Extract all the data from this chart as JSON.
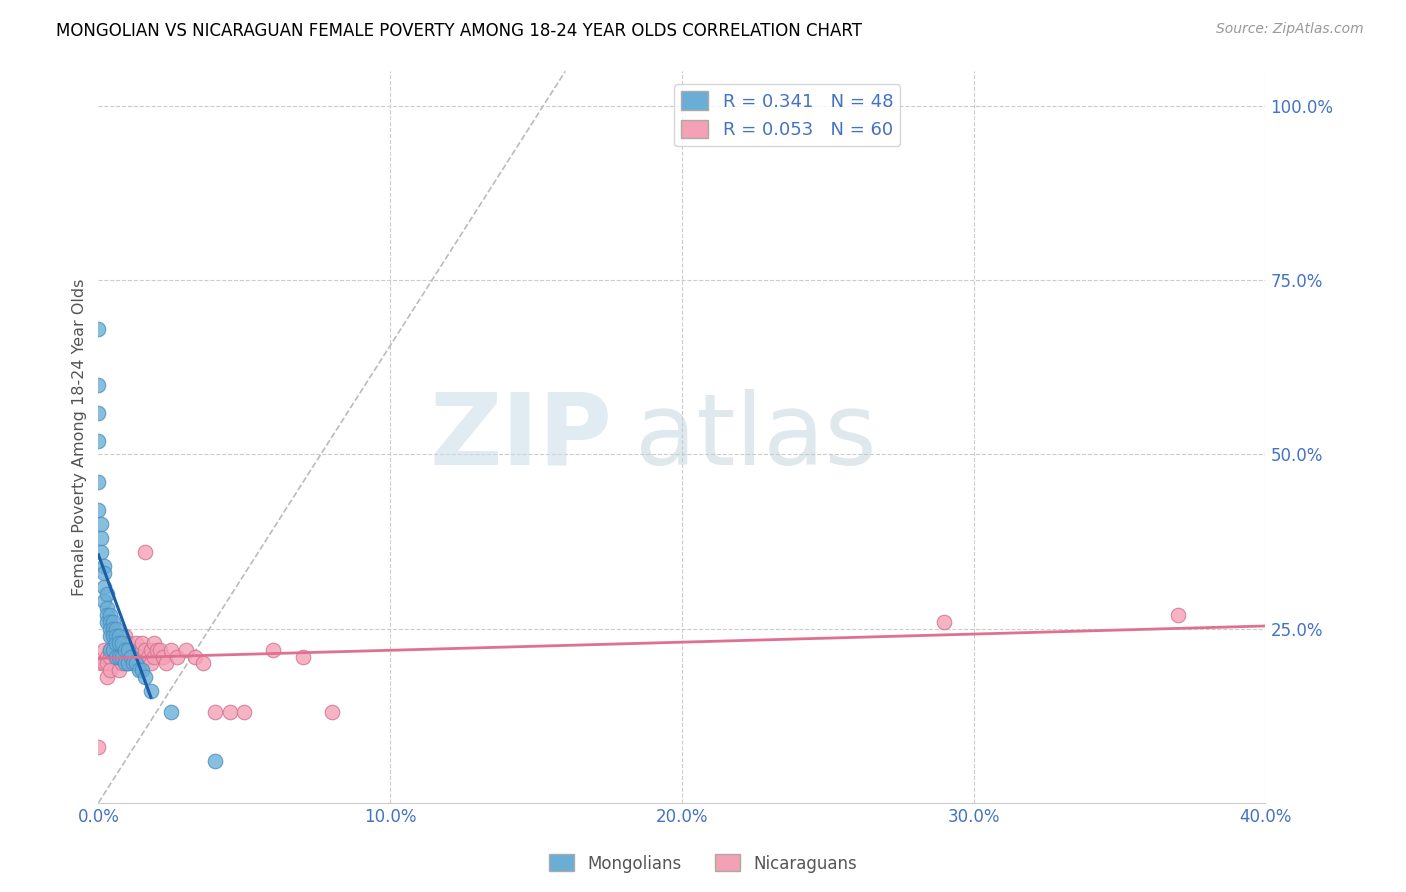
{
  "title": "MONGOLIAN VS NICARAGUAN FEMALE POVERTY AMONG 18-24 YEAR OLDS CORRELATION CHART",
  "source": "Source: ZipAtlas.com",
  "ylabel": "Female Poverty Among 18-24 Year Olds",
  "xlim": [
    0.0,
    0.4
  ],
  "ylim": [
    0.0,
    1.05
  ],
  "x_ticks": [
    0.0,
    0.1,
    0.2,
    0.3,
    0.4
  ],
  "x_tick_labels": [
    "0.0%",
    "10.0%",
    "20.0%",
    "30.0%",
    "40.0%"
  ],
  "y_ticks_right": [
    0.25,
    0.5,
    0.75,
    1.0
  ],
  "y_tick_labels_right": [
    "25.0%",
    "50.0%",
    "75.0%",
    "100.0%"
  ],
  "mongolian_color": "#6aaed6",
  "mongolian_edge_color": "#4a8ec0",
  "nicaraguan_color": "#f4a0b5",
  "nicaraguan_edge_color": "#d07090",
  "mongolian_R": 0.341,
  "mongolian_N": 48,
  "nicaraguan_R": 0.053,
  "nicaraguan_N": 60,
  "mongolian_trend_color": "#1a5fa8",
  "nicaraguan_trend_color": "#e07090",
  "ref_line_color": "#bbbbbb",
  "mongolian_x": [
    0.0,
    0.0,
    0.0,
    0.0,
    0.0,
    0.0,
    0.001,
    0.001,
    0.001,
    0.002,
    0.002,
    0.002,
    0.002,
    0.003,
    0.003,
    0.003,
    0.003,
    0.004,
    0.004,
    0.004,
    0.004,
    0.004,
    0.005,
    0.005,
    0.005,
    0.005,
    0.006,
    0.006,
    0.006,
    0.006,
    0.007,
    0.007,
    0.007,
    0.008,
    0.008,
    0.009,
    0.009,
    0.01,
    0.01,
    0.011,
    0.012,
    0.013,
    0.014,
    0.015,
    0.016,
    0.018,
    0.025,
    0.04
  ],
  "mongolian_y": [
    0.68,
    0.6,
    0.56,
    0.52,
    0.46,
    0.42,
    0.4,
    0.38,
    0.36,
    0.34,
    0.33,
    0.31,
    0.29,
    0.3,
    0.28,
    0.27,
    0.26,
    0.27,
    0.26,
    0.25,
    0.24,
    0.22,
    0.26,
    0.25,
    0.24,
    0.22,
    0.25,
    0.24,
    0.23,
    0.21,
    0.24,
    0.23,
    0.21,
    0.23,
    0.21,
    0.22,
    0.2,
    0.22,
    0.2,
    0.21,
    0.2,
    0.2,
    0.19,
    0.19,
    0.18,
    0.16,
    0.13,
    0.06
  ],
  "nicaraguan_x": [
    0.0,
    0.001,
    0.002,
    0.002,
    0.003,
    0.003,
    0.003,
    0.004,
    0.004,
    0.004,
    0.005,
    0.005,
    0.005,
    0.006,
    0.006,
    0.007,
    0.007,
    0.007,
    0.008,
    0.008,
    0.008,
    0.009,
    0.009,
    0.01,
    0.01,
    0.01,
    0.011,
    0.011,
    0.012,
    0.012,
    0.013,
    0.013,
    0.014,
    0.014,
    0.015,
    0.015,
    0.016,
    0.016,
    0.017,
    0.018,
    0.018,
    0.019,
    0.019,
    0.02,
    0.021,
    0.022,
    0.023,
    0.025,
    0.027,
    0.03,
    0.033,
    0.036,
    0.04,
    0.045,
    0.05,
    0.06,
    0.07,
    0.08,
    0.29,
    0.37
  ],
  "nicaraguan_y": [
    0.08,
    0.2,
    0.2,
    0.22,
    0.21,
    0.2,
    0.18,
    0.22,
    0.21,
    0.19,
    0.25,
    0.24,
    0.22,
    0.23,
    0.21,
    0.22,
    0.21,
    0.19,
    0.23,
    0.22,
    0.2,
    0.24,
    0.22,
    0.23,
    0.22,
    0.2,
    0.22,
    0.21,
    0.22,
    0.2,
    0.23,
    0.21,
    0.22,
    0.2,
    0.23,
    0.21,
    0.36,
    0.22,
    0.21,
    0.22,
    0.2,
    0.23,
    0.21,
    0.22,
    0.22,
    0.21,
    0.2,
    0.22,
    0.21,
    0.22,
    0.21,
    0.2,
    0.13,
    0.13,
    0.13,
    0.22,
    0.21,
    0.13,
    0.26,
    0.27
  ],
  "ref_line_x1": 0.0,
  "ref_line_y1": 0.0,
  "ref_line_x2": 0.16,
  "ref_line_y2": 1.05,
  "mon_trend_x1": 0.0,
  "mon_trend_x2": 0.018,
  "nic_trend_x1": 0.0,
  "nic_trend_x2": 0.4
}
